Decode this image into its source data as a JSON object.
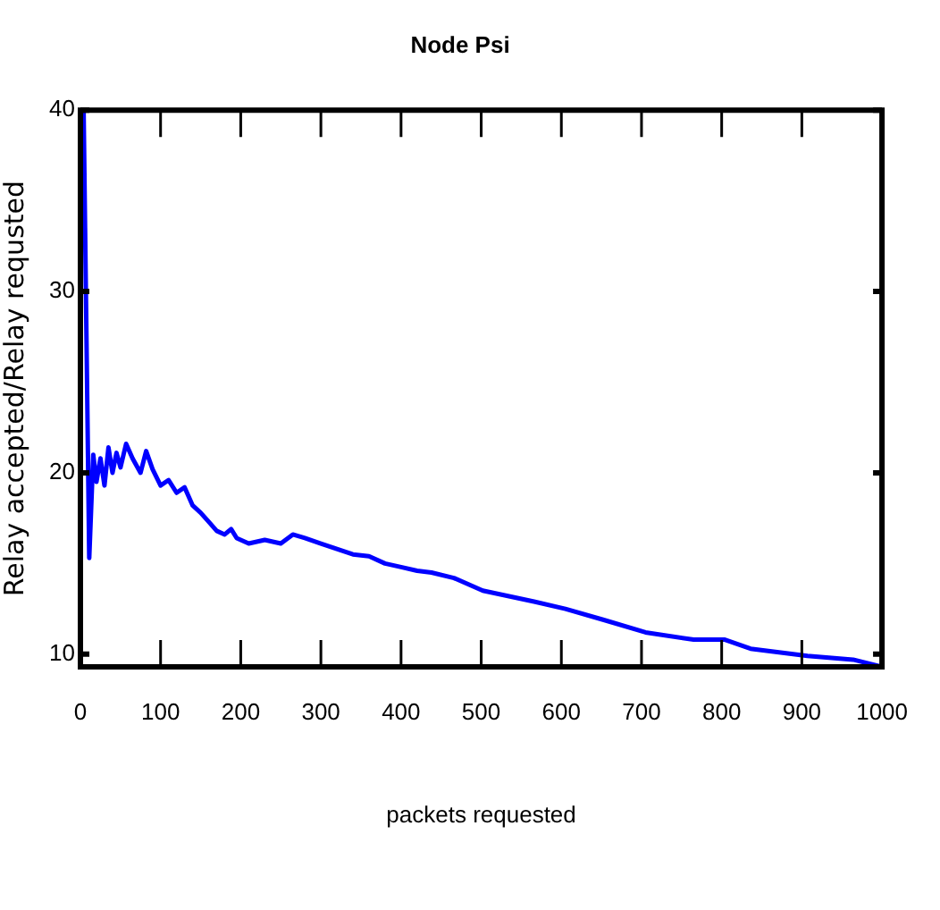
{
  "chart_data": {
    "type": "line",
    "title": "Node Psi",
    "xlabel": "packets requested",
    "ylabel": "Relay accepted/Relay requsted",
    "xlim": [
      0,
      1000
    ],
    "xticks": [
      0,
      100,
      200,
      300,
      400,
      500,
      600,
      700,
      800,
      900,
      1000
    ],
    "ylim": [
      9.3,
      40
    ],
    "yticks": [
      10,
      20,
      30,
      40
    ],
    "grid": false,
    "legend": false,
    "marker": "none",
    "line_style": "solid",
    "x": [
      0,
      4,
      11,
      16,
      20,
      25,
      30,
      35,
      40,
      45,
      50,
      57,
      65,
      75,
      82,
      90,
      100,
      110,
      120,
      130,
      140,
      150,
      160,
      170,
      180,
      188,
      195,
      210,
      230,
      250,
      265,
      280,
      300,
      320,
      340,
      360,
      380,
      400,
      420,
      438,
      466,
      502,
      566,
      605,
      652,
      705,
      765,
      804,
      836,
      907,
      964,
      1000
    ],
    "series": [
      {
        "color": "#0000ff",
        "values": [
          40,
          40,
          15.3,
          21,
          19.5,
          20.8,
          19.3,
          21.4,
          20,
          21.1,
          20.3,
          21.6,
          20.8,
          20,
          21.2,
          20.2,
          19.3,
          19.6,
          18.9,
          19.2,
          18.2,
          17.8,
          17.3,
          16.8,
          16.6,
          16.9,
          16.4,
          16.1,
          16.3,
          16.1,
          16.6,
          16.4,
          16.1,
          15.8,
          15.5,
          15.4,
          15,
          14.8,
          14.6,
          14.5,
          14.2,
          13.5,
          12.9,
          12.5,
          11.9,
          11.2,
          10.8,
          10.8,
          10.3,
          9.9,
          9.7,
          9.3
        ]
      }
    ]
  }
}
